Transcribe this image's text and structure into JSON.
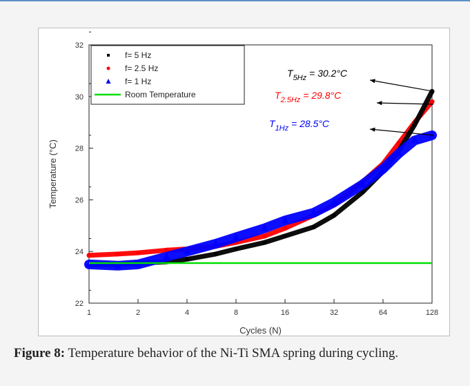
{
  "chart_data": {
    "type": "scatter",
    "title": "",
    "xlabel": "Cycles (N)",
    "ylabel": "Temperature (°C)",
    "x_scale": "log2",
    "xlim": [
      1,
      128
    ],
    "ylim": [
      22,
      32
    ],
    "x_ticks": [
      "1",
      "2",
      "4",
      "8",
      "16",
      "32",
      "64",
      "128"
    ],
    "y_ticks": [
      "22",
      "24",
      "26",
      "28",
      "30",
      "32"
    ],
    "legend_position": "top-left",
    "grid": false,
    "series": [
      {
        "name": "f= 5 Hz",
        "color": "#000000",
        "marker": "square",
        "points": [
          [
            1,
            23.5
          ],
          [
            1.5,
            23.5
          ],
          [
            2,
            23.55
          ],
          [
            3,
            23.6
          ],
          [
            4,
            23.7
          ],
          [
            6,
            23.9
          ],
          [
            8,
            24.1
          ],
          [
            12,
            24.35
          ],
          [
            16,
            24.6
          ],
          [
            24,
            24.95
          ],
          [
            32,
            25.4
          ],
          [
            48,
            26.3
          ],
          [
            64,
            27.1
          ],
          [
            80,
            27.9
          ],
          [
            100,
            28.9
          ],
          [
            128,
            30.2
          ]
        ]
      },
      {
        "name": "f= 2.5 Hz",
        "color": "#ff0000",
        "marker": "circle",
        "points": [
          [
            1,
            23.85
          ],
          [
            1.5,
            23.9
          ],
          [
            2,
            23.95
          ],
          [
            3,
            24.05
          ],
          [
            4,
            24.1
          ],
          [
            6,
            24.2
          ],
          [
            8,
            24.35
          ],
          [
            12,
            24.6
          ],
          [
            16,
            24.9
          ],
          [
            24,
            25.4
          ],
          [
            32,
            25.8
          ],
          [
            48,
            26.7
          ],
          [
            64,
            27.4
          ],
          [
            80,
            28.2
          ],
          [
            100,
            29.0
          ],
          [
            128,
            29.8
          ]
        ]
      },
      {
        "name": "f= 1 Hz",
        "color": "#0000ff",
        "marker": "triangle",
        "points": [
          [
            1,
            23.5
          ],
          [
            1.5,
            23.45
          ],
          [
            2,
            23.5
          ],
          [
            3,
            23.8
          ],
          [
            4,
            24.0
          ],
          [
            6,
            24.3
          ],
          [
            8,
            24.55
          ],
          [
            12,
            24.9
          ],
          [
            16,
            25.2
          ],
          [
            24,
            25.5
          ],
          [
            32,
            25.9
          ],
          [
            48,
            26.6
          ],
          [
            64,
            27.2
          ],
          [
            80,
            27.8
          ],
          [
            100,
            28.3
          ],
          [
            128,
            28.5
          ]
        ]
      },
      {
        "name": "Room Temperature",
        "color": "#00dd00",
        "marker": "line",
        "points": [
          [
            1,
            23.55
          ],
          [
            128,
            23.55
          ]
        ]
      }
    ],
    "annotations": [
      {
        "text_main": "T",
        "text_sub": "5Hz",
        "text_value": " = 30.2°C",
        "color": "#000000",
        "x": 128,
        "y": 30.2
      },
      {
        "text_main": "T",
        "text_sub": "2.5Hz",
        "text_value": " = 29.8°C",
        "color": "#ff0000",
        "x": 128,
        "y": 29.7
      },
      {
        "text_main": "T",
        "text_sub": "1Hz",
        "text_value": " = 28.5°C",
        "color": "#0000ff",
        "x": 128,
        "y": 28.5
      }
    ]
  },
  "caption": {
    "label": "Figure 8:",
    "text": " Temperature behavior of the Ni-Ti SMA spring during cycling."
  }
}
